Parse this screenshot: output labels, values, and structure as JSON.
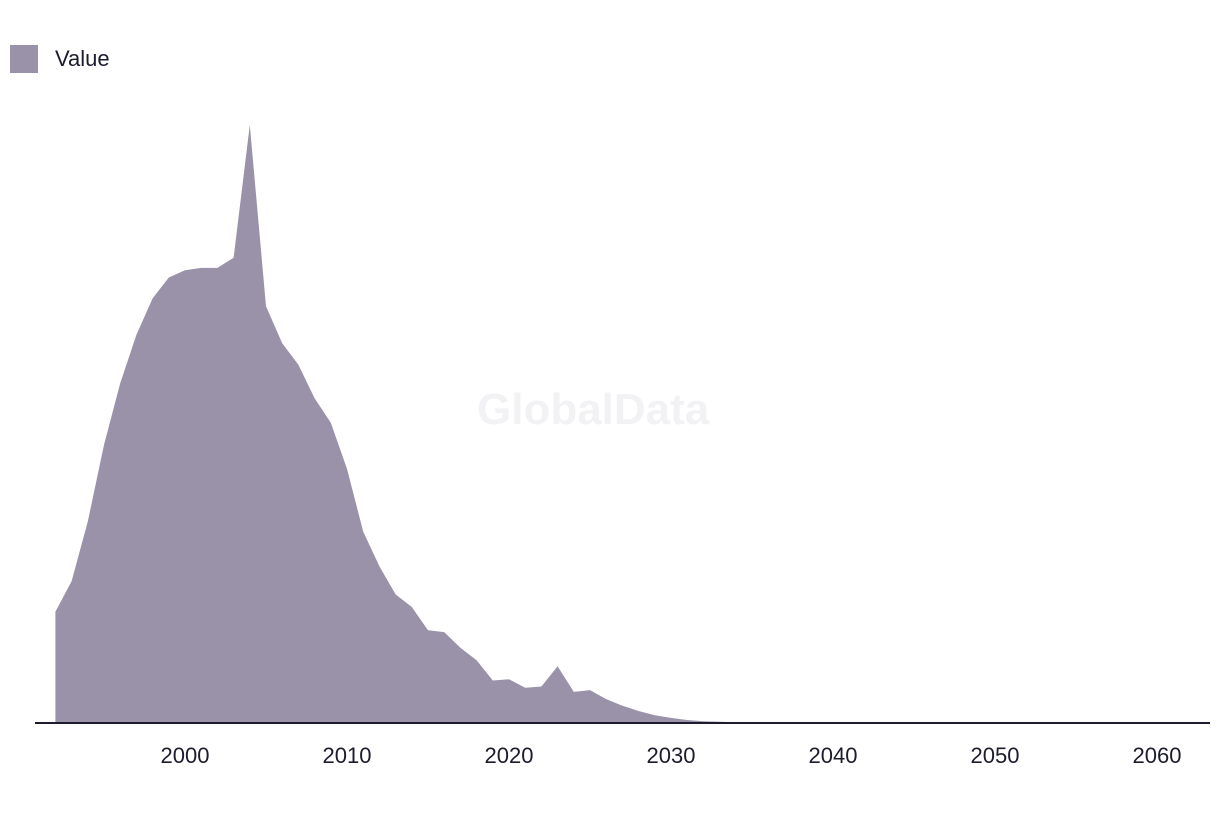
{
  "legend": {
    "label": "Value",
    "color": "#9a92a9"
  },
  "watermark": "GlobalData",
  "chart_data": {
    "type": "area",
    "title": "",
    "xlabel": "",
    "ylabel": "",
    "x_ticks": [
      "2000",
      "2010",
      "2020",
      "2030",
      "2040",
      "2050",
      "2060"
    ],
    "xlim": [
      1992,
      2063
    ],
    "ylim": [
      0,
      100
    ],
    "y_axis_visible": false,
    "grid": false,
    "legend_position": "top-left",
    "series": [
      {
        "name": "Value",
        "color": "#9a92a9",
        "x": [
          1992,
          1993,
          1994,
          1995,
          1996,
          1997,
          1998,
          1999,
          2000,
          2001,
          2002,
          2003,
          2004,
          2005,
          2006,
          2007,
          2008,
          2009,
          2010,
          2011,
          2012,
          2013,
          2014,
          2015,
          2016,
          2017,
          2018,
          2019,
          2020,
          2021,
          2022,
          2023,
          2024,
          2025,
          2026,
          2027,
          2028,
          2029,
          2030,
          2031,
          2032,
          2033,
          2034,
          2035,
          2036,
          2037,
          2038,
          2039,
          2040,
          2045,
          2050,
          2055,
          2060,
          2063
        ],
        "values": [
          18.6,
          23.7,
          33.7,
          46.5,
          56.8,
          64.9,
          71.0,
          74.5,
          75.7,
          76.1,
          76.1,
          77.8,
          100.0,
          69.7,
          63.5,
          59.9,
          54.3,
          50.2,
          42.5,
          32.0,
          26.2,
          21.5,
          19.4,
          15.5,
          15.2,
          12.6,
          10.5,
          7.1,
          7.3,
          5.9,
          6.1,
          9.5,
          5.2,
          5.5,
          4.0,
          2.9,
          2.0,
          1.3,
          0.85,
          0.5,
          0.3,
          0.2,
          0.12,
          0.08,
          0.05,
          0.03,
          0.02,
          0.01,
          0.0,
          0.0,
          0.0,
          0.0,
          0.0,
          0.0
        ]
      }
    ]
  }
}
